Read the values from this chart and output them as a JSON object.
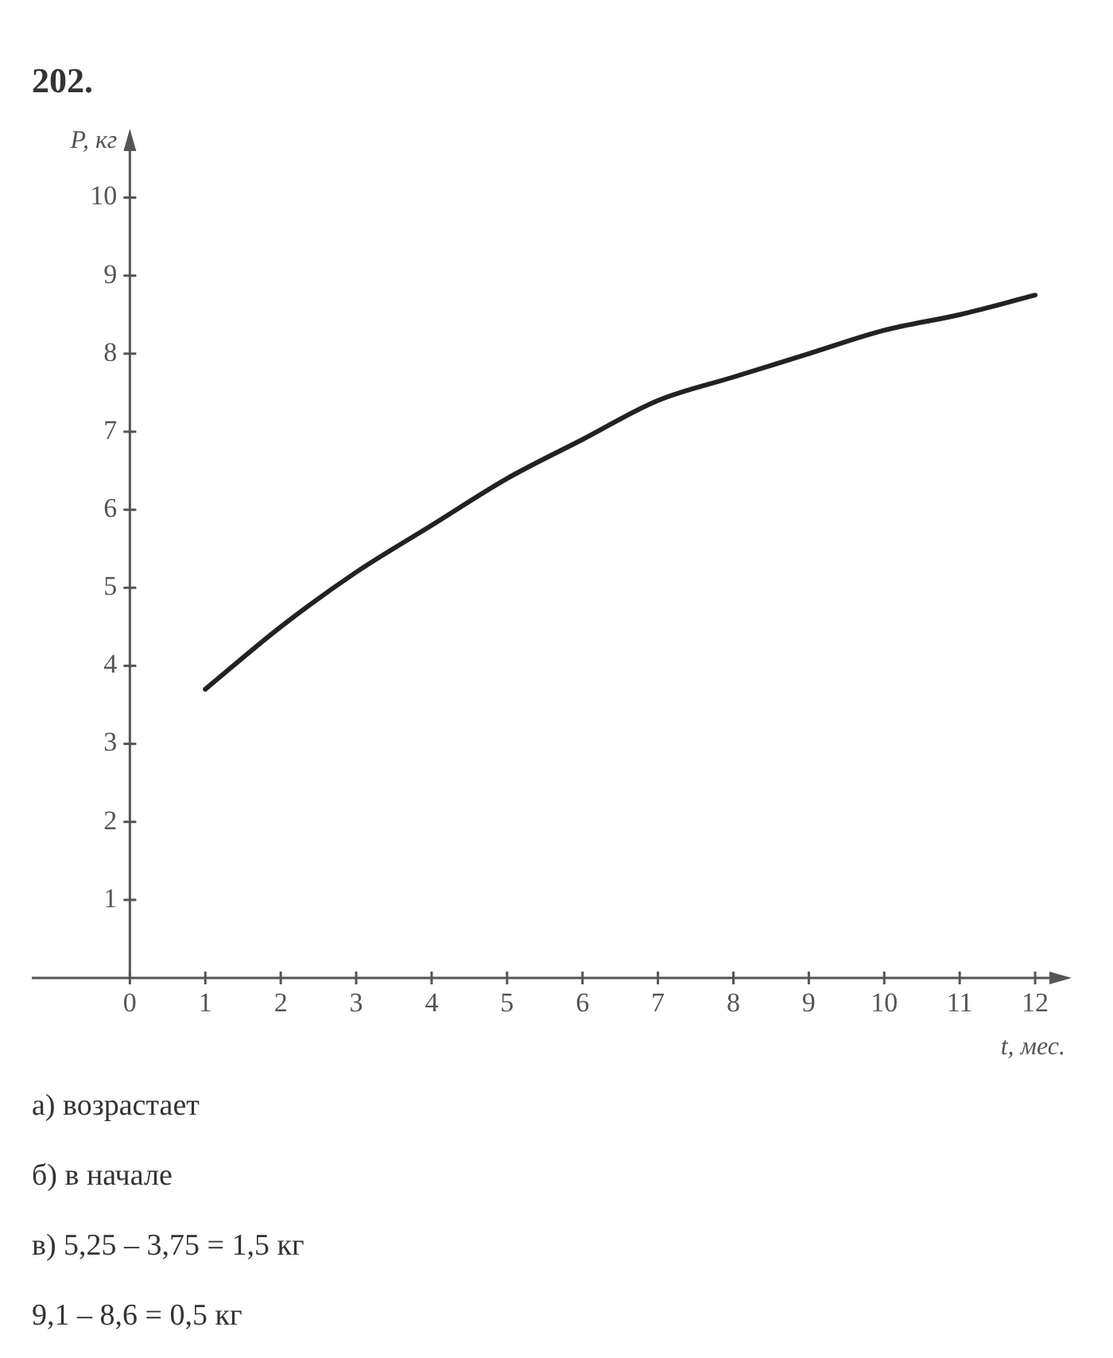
{
  "chart_data": {
    "type": "line",
    "title": "202.",
    "xlabel": "t, мес.",
    "ylabel": "P, кг",
    "x": [
      1,
      2,
      3,
      4,
      5,
      6,
      7,
      8,
      9,
      10,
      11,
      12
    ],
    "series": [
      {
        "color": "#222222",
        "values": [
          3.7,
          4.5,
          5.2,
          5.8,
          6.4,
          6.9,
          7.4,
          7.7,
          8.0,
          8.3,
          8.5,
          8.75
        ]
      }
    ],
    "xlim": [
      -1.3,
      12.4
    ],
    "ylim": [
      0,
      10.8
    ],
    "xticks": [
      0,
      1,
      2,
      3,
      4,
      5,
      6,
      7,
      8,
      9,
      10,
      11,
      12
    ],
    "yticks": [
      1,
      2,
      3,
      4,
      5,
      6,
      7,
      8,
      9,
      10
    ],
    "grid": false,
    "legend": false,
    "marker": "none",
    "line_style": "solid",
    "annotations": [
      "а) возрастает",
      "б) в начале",
      "в) 5,25 – 3,75 = 1,5 кг",
      "9,1 – 8,6 = 0,5 кг"
    ]
  }
}
